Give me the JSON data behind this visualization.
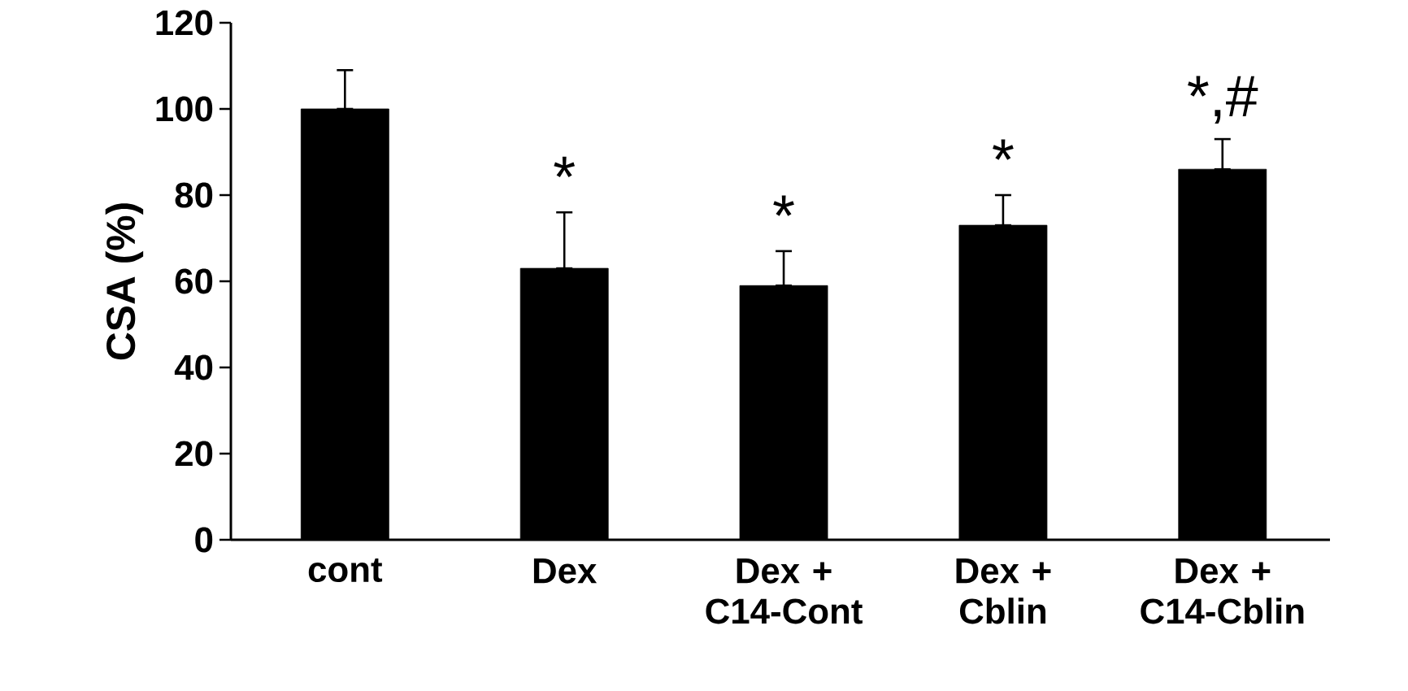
{
  "chart_data": {
    "type": "bar",
    "ylabel": "CSA (%)",
    "categories": [
      "cont",
      "Dex",
      "Dex + C14-Cont",
      "Dex + Cblin",
      "Dex + C14-Cblin"
    ],
    "values": [
      100,
      63,
      59,
      73,
      86
    ],
    "errors": [
      [
        100,
        109
      ],
      [
        63,
        76
      ],
      [
        59,
        67
      ],
      [
        73,
        80
      ],
      [
        86,
        93
      ]
    ],
    "color": "#000000",
    "ylim": [
      0,
      120
    ],
    "yticks": [
      0,
      20,
      40,
      60,
      80,
      100,
      120
    ],
    "grid": false,
    "annotations": [
      "*",
      "*",
      "*",
      "*,#"
    ]
  }
}
